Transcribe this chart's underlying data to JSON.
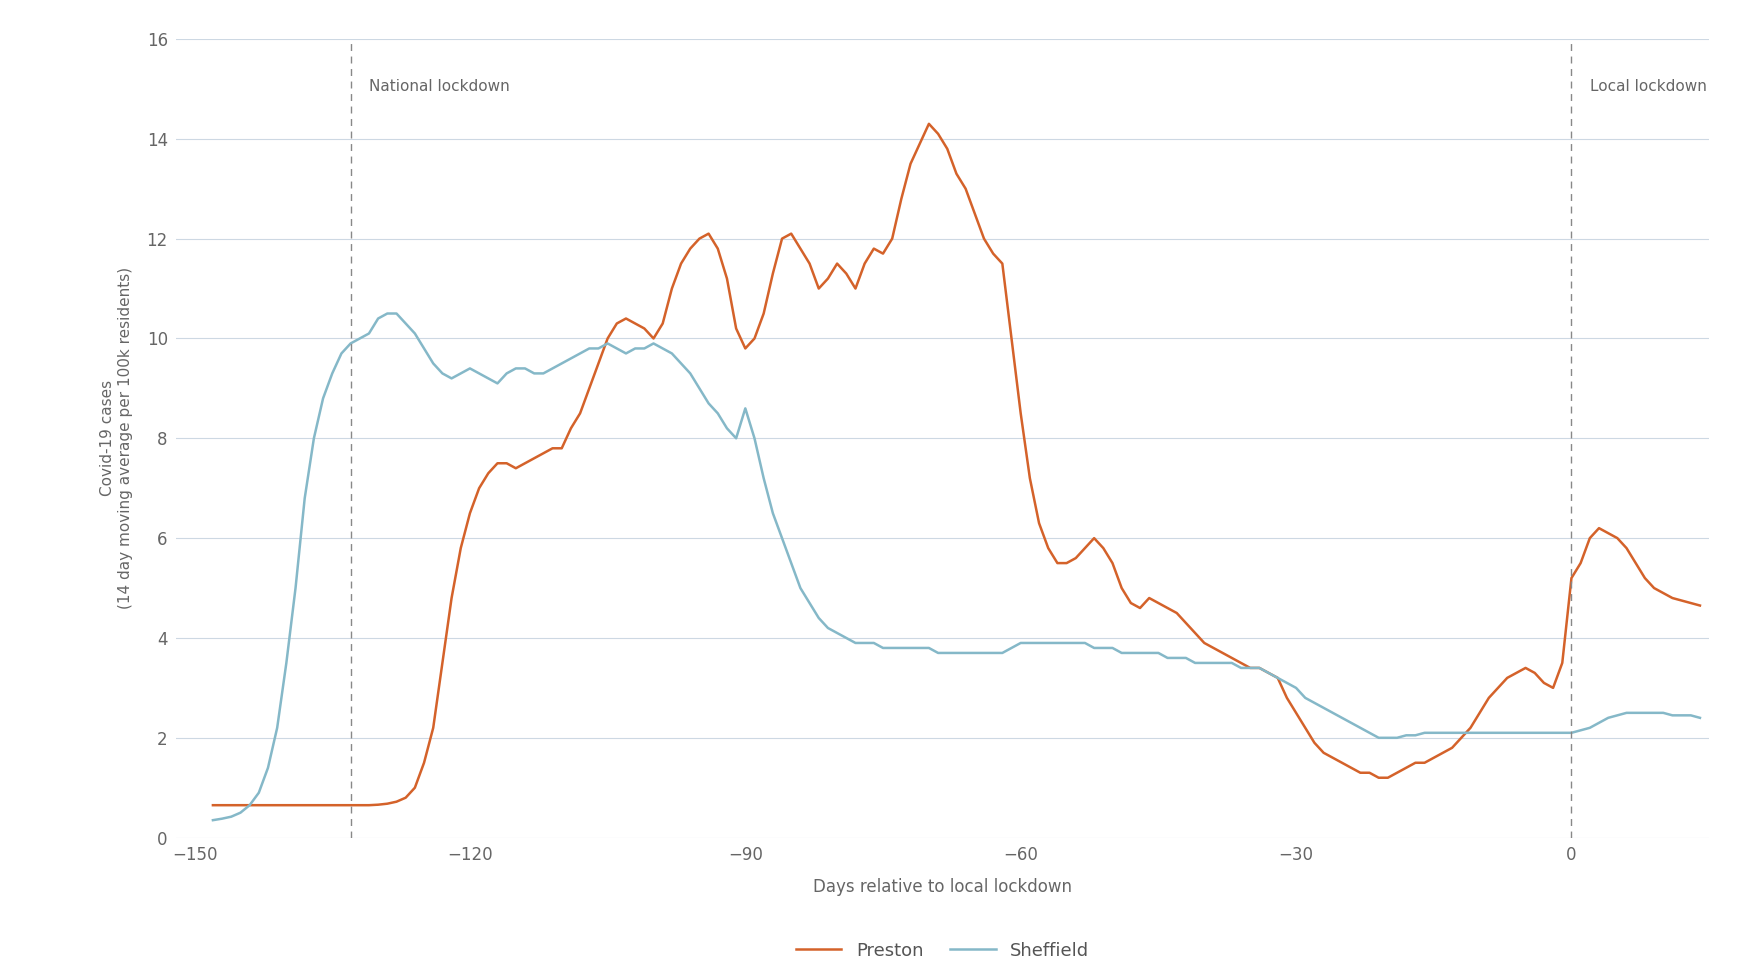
{
  "title": "",
  "xlabel": "Days relative to local lockdown",
  "ylabel": "Covid-19 cases\n(14 day moving average per 100k residents)",
  "xlim": [
    -152,
    15
  ],
  "ylim": [
    0,
    16
  ],
  "yticks": [
    0,
    2,
    4,
    6,
    8,
    10,
    12,
    14,
    16
  ],
  "xticks": [
    -150,
    -120,
    -90,
    -60,
    -30,
    0
  ],
  "national_lockdown_x": -133,
  "local_lockdown_x": 0,
  "national_lockdown_label": "National lockdown",
  "local_lockdown_label": "Local lockdown",
  "preston_color": "#d4622a",
  "sheffield_color": "#85b8c8",
  "background_color": "#ffffff",
  "grid_color": "#cdd8e3",
  "legend_labels": [
    "Preston",
    "Sheffield"
  ],
  "preston_pts": [
    [
      -148,
      0.65
    ],
    [
      -147,
      0.65
    ],
    [
      -146,
      0.65
    ],
    [
      -145,
      0.65
    ],
    [
      -144,
      0.65
    ],
    [
      -143,
      0.65
    ],
    [
      -142,
      0.65
    ],
    [
      -141,
      0.65
    ],
    [
      -140,
      0.65
    ],
    [
      -139,
      0.65
    ],
    [
      -138,
      0.65
    ],
    [
      -137,
      0.65
    ],
    [
      -136,
      0.65
    ],
    [
      -135,
      0.65
    ],
    [
      -134,
      0.65
    ],
    [
      -133,
      0.65
    ],
    [
      -132,
      0.65
    ],
    [
      -131,
      0.65
    ],
    [
      -130,
      0.66
    ],
    [
      -129,
      0.68
    ],
    [
      -128,
      0.72
    ],
    [
      -127,
      0.8
    ],
    [
      -126,
      1.0
    ],
    [
      -125,
      1.5
    ],
    [
      -124,
      2.2
    ],
    [
      -123,
      3.5
    ],
    [
      -122,
      4.8
    ],
    [
      -121,
      5.8
    ],
    [
      -120,
      6.5
    ],
    [
      -119,
      7.0
    ],
    [
      -118,
      7.3
    ],
    [
      -117,
      7.5
    ],
    [
      -116,
      7.5
    ],
    [
      -115,
      7.4
    ],
    [
      -114,
      7.5
    ],
    [
      -113,
      7.6
    ],
    [
      -112,
      7.7
    ],
    [
      -111,
      7.8
    ],
    [
      -110,
      7.8
    ],
    [
      -109,
      8.2
    ],
    [
      -108,
      8.5
    ],
    [
      -107,
      9.0
    ],
    [
      -106,
      9.5
    ],
    [
      -105,
      10.0
    ],
    [
      -104,
      10.3
    ],
    [
      -103,
      10.4
    ],
    [
      -102,
      10.3
    ],
    [
      -101,
      10.2
    ],
    [
      -100,
      10.0
    ],
    [
      -99,
      10.3
    ],
    [
      -98,
      11.0
    ],
    [
      -97,
      11.5
    ],
    [
      -96,
      11.8
    ],
    [
      -95,
      12.0
    ],
    [
      -94,
      12.1
    ],
    [
      -93,
      11.8
    ],
    [
      -92,
      11.2
    ],
    [
      -91,
      10.2
    ],
    [
      -90,
      9.8
    ],
    [
      -89,
      10.0
    ],
    [
      -88,
      10.5
    ],
    [
      -87,
      11.3
    ],
    [
      -86,
      12.0
    ],
    [
      -85,
      12.1
    ],
    [
      -84,
      11.8
    ],
    [
      -83,
      11.5
    ],
    [
      -82,
      11.0
    ],
    [
      -81,
      11.2
    ],
    [
      -80,
      11.5
    ],
    [
      -79,
      11.3
    ],
    [
      -78,
      11.0
    ],
    [
      -77,
      11.5
    ],
    [
      -76,
      11.8
    ],
    [
      -75,
      11.7
    ],
    [
      -74,
      12.0
    ],
    [
      -73,
      12.8
    ],
    [
      -72,
      13.5
    ],
    [
      -71,
      13.9
    ],
    [
      -70,
      14.3
    ],
    [
      -69,
      14.1
    ],
    [
      -68,
      13.8
    ],
    [
      -67,
      13.3
    ],
    [
      -66,
      13.0
    ],
    [
      -65,
      12.5
    ],
    [
      -64,
      12.0
    ],
    [
      -63,
      11.7
    ],
    [
      -62,
      11.5
    ],
    [
      -61,
      10.0
    ],
    [
      -60,
      8.5
    ],
    [
      -59,
      7.2
    ],
    [
      -58,
      6.3
    ],
    [
      -57,
      5.8
    ],
    [
      -56,
      5.5
    ],
    [
      -55,
      5.5
    ],
    [
      -54,
      5.6
    ],
    [
      -53,
      5.8
    ],
    [
      -52,
      6.0
    ],
    [
      -51,
      5.8
    ],
    [
      -50,
      5.5
    ],
    [
      -49,
      5.0
    ],
    [
      -48,
      4.7
    ],
    [
      -47,
      4.6
    ],
    [
      -46,
      4.8
    ],
    [
      -45,
      4.7
    ],
    [
      -44,
      4.6
    ],
    [
      -43,
      4.5
    ],
    [
      -42,
      4.3
    ],
    [
      -41,
      4.1
    ],
    [
      -40,
      3.9
    ],
    [
      -39,
      3.8
    ],
    [
      -38,
      3.7
    ],
    [
      -37,
      3.6
    ],
    [
      -36,
      3.5
    ],
    [
      -35,
      3.4
    ],
    [
      -34,
      3.4
    ],
    [
      -33,
      3.3
    ],
    [
      -32,
      3.2
    ],
    [
      -31,
      2.8
    ],
    [
      -30,
      2.5
    ],
    [
      -29,
      2.2
    ],
    [
      -28,
      1.9
    ],
    [
      -27,
      1.7
    ],
    [
      -26,
      1.6
    ],
    [
      -25,
      1.5
    ],
    [
      -24,
      1.4
    ],
    [
      -23,
      1.3
    ],
    [
      -22,
      1.3
    ],
    [
      -21,
      1.2
    ],
    [
      -20,
      1.2
    ],
    [
      -19,
      1.3
    ],
    [
      -18,
      1.4
    ],
    [
      -17,
      1.5
    ],
    [
      -16,
      1.5
    ],
    [
      -15,
      1.6
    ],
    [
      -14,
      1.7
    ],
    [
      -13,
      1.8
    ],
    [
      -12,
      2.0
    ],
    [
      -11,
      2.2
    ],
    [
      -10,
      2.5
    ],
    [
      -9,
      2.8
    ],
    [
      -8,
      3.0
    ],
    [
      -7,
      3.2
    ],
    [
      -6,
      3.3
    ],
    [
      -5,
      3.4
    ],
    [
      -4,
      3.3
    ],
    [
      -3,
      3.1
    ],
    [
      -2,
      3.0
    ],
    [
      -1,
      3.5
    ],
    [
      0,
      5.2
    ],
    [
      1,
      5.5
    ],
    [
      2,
      6.0
    ],
    [
      3,
      6.2
    ],
    [
      4,
      6.1
    ],
    [
      5,
      6.0
    ],
    [
      6,
      5.8
    ],
    [
      7,
      5.5
    ],
    [
      8,
      5.2
    ],
    [
      9,
      5.0
    ],
    [
      10,
      4.9
    ],
    [
      11,
      4.8
    ],
    [
      12,
      4.75
    ],
    [
      13,
      4.7
    ],
    [
      14,
      4.65
    ]
  ],
  "sheffield_pts": [
    [
      -148,
      0.35
    ],
    [
      -147,
      0.38
    ],
    [
      -146,
      0.42
    ],
    [
      -145,
      0.5
    ],
    [
      -144,
      0.65
    ],
    [
      -143,
      0.9
    ],
    [
      -142,
      1.4
    ],
    [
      -141,
      2.2
    ],
    [
      -140,
      3.5
    ],
    [
      -139,
      5.0
    ],
    [
      -138,
      6.8
    ],
    [
      -137,
      8.0
    ],
    [
      -136,
      8.8
    ],
    [
      -135,
      9.3
    ],
    [
      -134,
      9.7
    ],
    [
      -133,
      9.9
    ],
    [
      -132,
      10.0
    ],
    [
      -131,
      10.1
    ],
    [
      -130,
      10.4
    ],
    [
      -129,
      10.5
    ],
    [
      -128,
      10.5
    ],
    [
      -127,
      10.3
    ],
    [
      -126,
      10.1
    ],
    [
      -125,
      9.8
    ],
    [
      -124,
      9.5
    ],
    [
      -123,
      9.3
    ],
    [
      -122,
      9.2
    ],
    [
      -121,
      9.3
    ],
    [
      -120,
      9.4
    ],
    [
      -119,
      9.3
    ],
    [
      -118,
      9.2
    ],
    [
      -117,
      9.1
    ],
    [
      -116,
      9.3
    ],
    [
      -115,
      9.4
    ],
    [
      -114,
      9.4
    ],
    [
      -113,
      9.3
    ],
    [
      -112,
      9.3
    ],
    [
      -111,
      9.4
    ],
    [
      -110,
      9.5
    ],
    [
      -109,
      9.6
    ],
    [
      -108,
      9.7
    ],
    [
      -107,
      9.8
    ],
    [
      -106,
      9.8
    ],
    [
      -105,
      9.9
    ],
    [
      -104,
      9.8
    ],
    [
      -103,
      9.7
    ],
    [
      -102,
      9.8
    ],
    [
      -101,
      9.8
    ],
    [
      -100,
      9.9
    ],
    [
      -99,
      9.8
    ],
    [
      -98,
      9.7
    ],
    [
      -97,
      9.5
    ],
    [
      -96,
      9.3
    ],
    [
      -95,
      9.0
    ],
    [
      -94,
      8.7
    ],
    [
      -93,
      8.5
    ],
    [
      -92,
      8.2
    ],
    [
      -91,
      8.0
    ],
    [
      -90,
      8.6
    ],
    [
      -89,
      8.0
    ],
    [
      -88,
      7.2
    ],
    [
      -87,
      6.5
    ],
    [
      -86,
      6.0
    ],
    [
      -85,
      5.5
    ],
    [
      -84,
      5.0
    ],
    [
      -83,
      4.7
    ],
    [
      -82,
      4.4
    ],
    [
      -81,
      4.2
    ],
    [
      -80,
      4.1
    ],
    [
      -79,
      4.0
    ],
    [
      -78,
      3.9
    ],
    [
      -77,
      3.9
    ],
    [
      -76,
      3.9
    ],
    [
      -75,
      3.8
    ],
    [
      -74,
      3.8
    ],
    [
      -73,
      3.8
    ],
    [
      -72,
      3.8
    ],
    [
      -71,
      3.8
    ],
    [
      -70,
      3.8
    ],
    [
      -69,
      3.7
    ],
    [
      -68,
      3.7
    ],
    [
      -67,
      3.7
    ],
    [
      -66,
      3.7
    ],
    [
      -65,
      3.7
    ],
    [
      -64,
      3.7
    ],
    [
      -63,
      3.7
    ],
    [
      -62,
      3.7
    ],
    [
      -61,
      3.8
    ],
    [
      -60,
      3.9
    ],
    [
      -59,
      3.9
    ],
    [
      -58,
      3.9
    ],
    [
      -57,
      3.9
    ],
    [
      -56,
      3.9
    ],
    [
      -55,
      3.9
    ],
    [
      -54,
      3.9
    ],
    [
      -53,
      3.9
    ],
    [
      -52,
      3.8
    ],
    [
      -51,
      3.8
    ],
    [
      -50,
      3.8
    ],
    [
      -49,
      3.7
    ],
    [
      -48,
      3.7
    ],
    [
      -47,
      3.7
    ],
    [
      -46,
      3.7
    ],
    [
      -45,
      3.7
    ],
    [
      -44,
      3.6
    ],
    [
      -43,
      3.6
    ],
    [
      -42,
      3.6
    ],
    [
      -41,
      3.5
    ],
    [
      -40,
      3.5
    ],
    [
      -39,
      3.5
    ],
    [
      -38,
      3.5
    ],
    [
      -37,
      3.5
    ],
    [
      -36,
      3.4
    ],
    [
      -35,
      3.4
    ],
    [
      -34,
      3.4
    ],
    [
      -33,
      3.3
    ],
    [
      -32,
      3.2
    ],
    [
      -31,
      3.1
    ],
    [
      -30,
      3.0
    ],
    [
      -29,
      2.8
    ],
    [
      -28,
      2.7
    ],
    [
      -27,
      2.6
    ],
    [
      -26,
      2.5
    ],
    [
      -25,
      2.4
    ],
    [
      -24,
      2.3
    ],
    [
      -23,
      2.2
    ],
    [
      -22,
      2.1
    ],
    [
      -21,
      2.0
    ],
    [
      -20,
      2.0
    ],
    [
      -19,
      2.0
    ],
    [
      -18,
      2.05
    ],
    [
      -17,
      2.05
    ],
    [
      -16,
      2.1
    ],
    [
      -15,
      2.1
    ],
    [
      -14,
      2.1
    ],
    [
      -13,
      2.1
    ],
    [
      -12,
      2.1
    ],
    [
      -11,
      2.1
    ],
    [
      -10,
      2.1
    ],
    [
      -9,
      2.1
    ],
    [
      -8,
      2.1
    ],
    [
      -7,
      2.1
    ],
    [
      -6,
      2.1
    ],
    [
      -5,
      2.1
    ],
    [
      -4,
      2.1
    ],
    [
      -3,
      2.1
    ],
    [
      -2,
      2.1
    ],
    [
      -1,
      2.1
    ],
    [
      0,
      2.1
    ],
    [
      1,
      2.15
    ],
    [
      2,
      2.2
    ],
    [
      3,
      2.3
    ],
    [
      4,
      2.4
    ],
    [
      5,
      2.45
    ],
    [
      6,
      2.5
    ],
    [
      7,
      2.5
    ],
    [
      8,
      2.5
    ],
    [
      9,
      2.5
    ],
    [
      10,
      2.5
    ],
    [
      11,
      2.45
    ],
    [
      12,
      2.45
    ],
    [
      13,
      2.45
    ],
    [
      14,
      2.4
    ]
  ]
}
